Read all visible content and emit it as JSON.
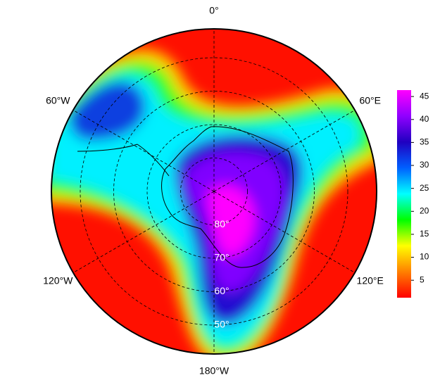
{
  "map": {
    "longitude_labels": [
      {
        "value": 0,
        "label": "0°"
      },
      {
        "value": -60,
        "label": "60°W"
      },
      {
        "value": 60,
        "label": "60°E"
      },
      {
        "value": -120,
        "label": "120°W"
      },
      {
        "value": 120,
        "label": "120°E"
      },
      {
        "value": -180,
        "label": "180°W"
      }
    ],
    "latitude_labels": [
      {
        "value": -80,
        "label": "80°"
      },
      {
        "value": -70,
        "label": "70°"
      },
      {
        "value": -60,
        "label": "60°"
      },
      {
        "value": -50,
        "label": "50°"
      }
    ],
    "colorbar": {
      "range": [
        1.2,
        46.4
      ],
      "ticks": [
        5,
        10,
        15,
        20,
        25,
        30,
        35,
        40,
        45
      ],
      "colors": [
        "#ff0000",
        "#ff8000",
        "#ffff00",
        "#00ff00",
        "#00ffff",
        "#0060ff",
        "#2000c0",
        "#9000ff",
        "#ff00ff"
      ]
    }
  }
}
